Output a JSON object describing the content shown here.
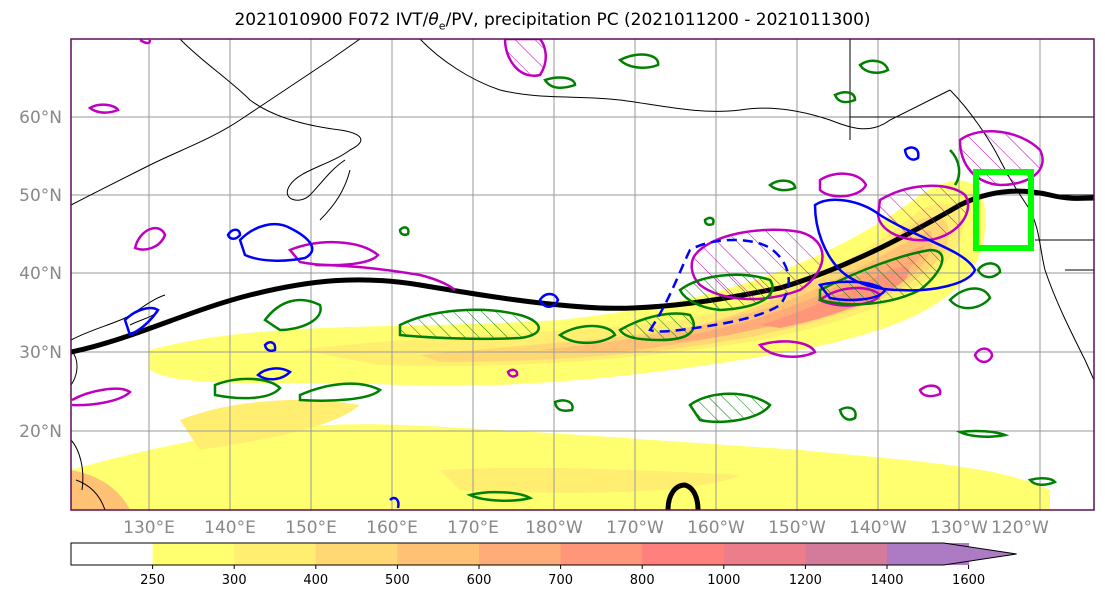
{
  "title": {
    "prefix": "2021010900 F072 IVT/",
    "theta": "θ",
    "sub": "e",
    "suffix": "/PV, precipitation PC (2021011200 - 2021011300)"
  },
  "map": {
    "lon_labels": [
      "130°E",
      "140°E",
      "150°E",
      "160°E",
      "170°E",
      "180°W",
      "170°W",
      "160°W",
      "150°W",
      "140°W",
      "130°W",
      "120°W"
    ],
    "lat_labels": [
      "60°N",
      "50°N",
      "40°N",
      "30°N",
      "20°N"
    ],
    "colors": {
      "coast": "#000000",
      "grid": "#999999",
      "frame": "#5a0f5a",
      "pv_contour": "#000000",
      "positive_pc": "#008000",
      "negative_pc": "#0000ff",
      "theta_contour": "#c000c0",
      "target_box": "#00ff00"
    }
  },
  "colorbar": {
    "levels": [
      "250",
      "300",
      "400",
      "500",
      "600",
      "700",
      "800",
      "1000",
      "1200",
      "1400",
      "1600"
    ],
    "colors": [
      "#ffffff",
      "#ffff70",
      "#ffee70",
      "#ffd873",
      "#ffc275",
      "#ffac78",
      "#ff967a",
      "#ff807d",
      "#ee7d8c",
      "#d47b9c",
      "#ad7bc4"
    ]
  }
}
